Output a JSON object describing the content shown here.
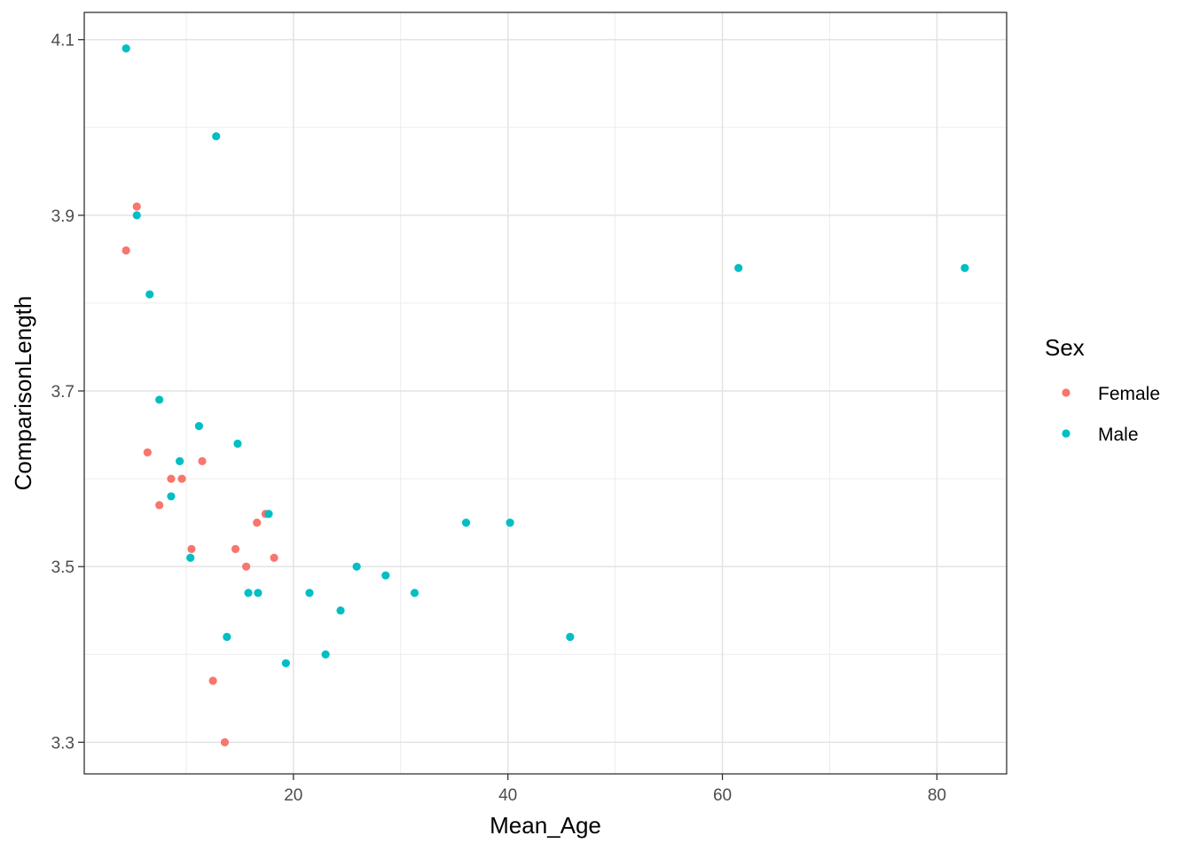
{
  "chart_data": {
    "type": "scatter",
    "title": "",
    "xlabel": "Mean_Age",
    "ylabel": "ComparisonLength",
    "xlim": [
      0.5,
      86.5
    ],
    "ylim": [
      3.264,
      4.131
    ],
    "x_ticks": [
      20,
      40,
      60,
      80
    ],
    "y_ticks": [
      3.3,
      3.5,
      3.7,
      3.9,
      4.1
    ],
    "x_tick_labels": [
      "20",
      "40",
      "60",
      "80"
    ],
    "y_tick_labels": [
      "3.3",
      "3.5",
      "3.7",
      "3.9",
      "4.1"
    ],
    "grid": true,
    "legend": {
      "title": "Sex",
      "placement": "right"
    },
    "series": [
      {
        "name": "Female",
        "color": "#F8766D",
        "points": [
          {
            "x": 4.4,
            "y": 3.86
          },
          {
            "x": 5.4,
            "y": 3.91
          },
          {
            "x": 6.4,
            "y": 3.63
          },
          {
            "x": 7.5,
            "y": 3.57
          },
          {
            "x": 8.6,
            "y": 3.6
          },
          {
            "x": 9.6,
            "y": 3.6
          },
          {
            "x": 10.5,
            "y": 3.52
          },
          {
            "x": 11.5,
            "y": 3.62
          },
          {
            "x": 12.5,
            "y": 3.37
          },
          {
            "x": 13.6,
            "y": 3.3
          },
          {
            "x": 14.6,
            "y": 3.52
          },
          {
            "x": 15.6,
            "y": 3.5
          },
          {
            "x": 16.6,
            "y": 3.55
          },
          {
            "x": 17.4,
            "y": 3.56
          },
          {
            "x": 18.2,
            "y": 3.51
          }
        ]
      },
      {
        "name": "Male",
        "color": "#00BFC4",
        "points": [
          {
            "x": 4.4,
            "y": 4.09
          },
          {
            "x": 5.4,
            "y": 3.9
          },
          {
            "x": 6.6,
            "y": 3.81
          },
          {
            "x": 7.5,
            "y": 3.69
          },
          {
            "x": 8.6,
            "y": 3.58
          },
          {
            "x": 9.4,
            "y": 3.62
          },
          {
            "x": 10.4,
            "y": 3.51
          },
          {
            "x": 11.2,
            "y": 3.66
          },
          {
            "x": 12.8,
            "y": 3.99
          },
          {
            "x": 13.8,
            "y": 3.42
          },
          {
            "x": 14.8,
            "y": 3.64
          },
          {
            "x": 15.8,
            "y": 3.47
          },
          {
            "x": 16.7,
            "y": 3.47
          },
          {
            "x": 17.7,
            "y": 3.56
          },
          {
            "x": 19.3,
            "y": 3.39
          },
          {
            "x": 21.5,
            "y": 3.47
          },
          {
            "x": 23.0,
            "y": 3.4
          },
          {
            "x": 24.4,
            "y": 3.45
          },
          {
            "x": 25.9,
            "y": 3.5
          },
          {
            "x": 28.6,
            "y": 3.49
          },
          {
            "x": 31.3,
            "y": 3.47
          },
          {
            "x": 36.1,
            "y": 3.55
          },
          {
            "x": 40.2,
            "y": 3.55
          },
          {
            "x": 45.8,
            "y": 3.42
          },
          {
            "x": 61.5,
            "y": 3.84
          },
          {
            "x": 82.6,
            "y": 3.84
          }
        ]
      }
    ]
  }
}
